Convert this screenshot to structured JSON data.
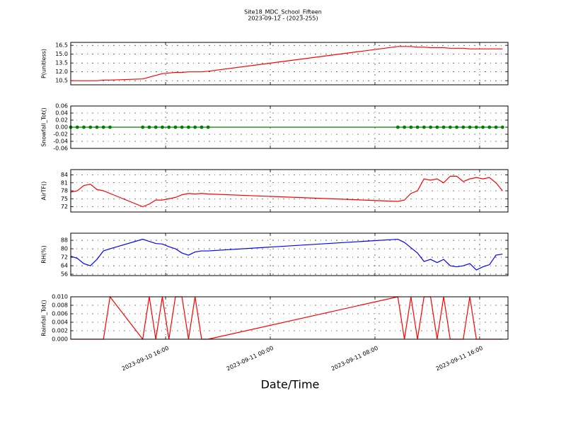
{
  "title": "Site18_MDC_School_Fifteen",
  "subtitle": "2023-09-12 - (2023-255)",
  "xlabel": "Date/Time",
  "chart_data": [
    {
      "type": "line",
      "ylabel": "P(unitless)",
      "color": "#ff0000",
      "x": [
        "2023-09-10 08:45",
        "2023-09-10 09:15",
        "2023-09-10 09:45",
        "2023-09-10 10:15",
        "2023-09-10 10:45",
        "2023-09-10 11:15",
        "2023-09-10 11:45",
        "2023-09-10 14:15",
        "2023-09-10 14:45",
        "2023-09-10 15:15",
        "2023-09-10 15:45",
        "2023-09-10 16:15",
        "2023-09-10 16:45",
        "2023-09-10 17:15",
        "2023-09-10 17:45",
        "2023-09-10 18:15",
        "2023-09-10 18:45",
        "2023-09-10 19:15",
        "2023-09-11 09:45",
        "2023-09-11 10:15",
        "2023-09-11 10:45",
        "2023-09-11 11:15",
        "2023-09-11 11:45",
        "2023-09-11 12:15",
        "2023-09-11 12:45",
        "2023-09-11 13:15",
        "2023-09-11 13:45",
        "2023-09-11 14:15",
        "2023-09-11 14:45",
        "2023-09-11 15:15",
        "2023-09-11 15:45",
        "2023-09-11 16:15",
        "2023-09-11 16:45",
        "2023-09-11 17:15",
        "2023-09-11 17:45"
      ],
      "values": [
        10.5,
        10.5,
        10.5,
        10.5,
        10.5,
        10.6,
        10.6,
        10.8,
        11.1,
        11.4,
        11.7,
        11.8,
        11.9,
        11.9,
        12.0,
        12.0,
        12.0,
        12.1,
        16.3,
        16.3,
        16.3,
        16.2,
        16.2,
        16.1,
        16.1,
        16.1,
        16.0,
        16.0,
        16.0,
        15.9,
        15.9,
        15.9,
        15.9,
        15.9,
        15.9
      ],
      "xlim": [
        "2023-09-10 08:45",
        "2023-09-11 18:10"
      ],
      "xticks": [
        "2023-09-10 16:00",
        "2023-09-11 00:00",
        "2023-09-11 08:00",
        "2023-09-11 16:00"
      ],
      "ylim": [
        9.8,
        17.0
      ],
      "yticks": [
        10.5,
        {
          "value": 12,
          "label": "12.0"
        },
        13.5,
        {
          "value": 15,
          "label": "15.0"
        },
        16.5
      ],
      "grid": true
    },
    {
      "type": "line",
      "ylabel": "Snowfall_Tot()",
      "color": "#008000",
      "markers": true,
      "x": [
        "2023-09-10 08:45",
        "2023-09-10 09:15",
        "2023-09-10 09:45",
        "2023-09-10 10:15",
        "2023-09-10 10:45",
        "2023-09-10 11:15",
        "2023-09-10 11:45",
        "2023-09-10 14:15",
        "2023-09-10 14:45",
        "2023-09-10 15:15",
        "2023-09-10 15:45",
        "2023-09-10 16:15",
        "2023-09-10 16:45",
        "2023-09-10 17:15",
        "2023-09-10 17:45",
        "2023-09-10 18:15",
        "2023-09-10 18:45",
        "2023-09-10 19:15",
        "2023-09-11 09:45",
        "2023-09-11 10:15",
        "2023-09-11 10:45",
        "2023-09-11 11:15",
        "2023-09-11 11:45",
        "2023-09-11 12:15",
        "2023-09-11 12:45",
        "2023-09-11 13:15",
        "2023-09-11 13:45",
        "2023-09-11 14:15",
        "2023-09-11 14:45",
        "2023-09-11 15:15",
        "2023-09-11 15:45",
        "2023-09-11 16:15",
        "2023-09-11 16:45",
        "2023-09-11 17:15",
        "2023-09-11 17:45"
      ],
      "values": [
        0,
        0,
        0,
        0,
        0,
        0,
        0,
        0,
        0,
        0,
        0,
        0,
        0,
        0,
        0,
        0,
        0,
        0,
        0,
        0,
        0,
        0,
        0,
        0,
        0,
        0,
        0,
        0,
        0,
        0,
        0,
        0,
        0,
        0,
        0
      ],
      "xlim": [
        "2023-09-10 08:45",
        "2023-09-11 18:10"
      ],
      "xticks": [
        "2023-09-10 16:00",
        "2023-09-11 00:00",
        "2023-09-11 08:00",
        "2023-09-11 16:00"
      ],
      "ylim": [
        -0.06,
        0.06
      ],
      "yticks": [
        -0.06,
        -0.04,
        -0.02,
        {
          "value": 0,
          "label": "0.00"
        },
        0.02,
        0.04,
        0.06
      ],
      "grid": true
    },
    {
      "type": "line",
      "ylabel": "AirTF()",
      "color": "#ff0000",
      "x": [
        "2023-09-10 08:45",
        "2023-09-10 09:15",
        "2023-09-10 09:45",
        "2023-09-10 10:15",
        "2023-09-10 10:45",
        "2023-09-10 11:15",
        "2023-09-10 11:45",
        "2023-09-10 14:15",
        "2023-09-10 14:45",
        "2023-09-10 15:15",
        "2023-09-10 15:45",
        "2023-09-10 16:15",
        "2023-09-10 16:45",
        "2023-09-10 17:15",
        "2023-09-10 17:45",
        "2023-09-10 18:15",
        "2023-09-10 18:45",
        "2023-09-10 19:15",
        "2023-09-11 09:45",
        "2023-09-11 10:15",
        "2023-09-11 10:45",
        "2023-09-11 11:15",
        "2023-09-11 11:45",
        "2023-09-11 12:15",
        "2023-09-11 12:45",
        "2023-09-11 13:15",
        "2023-09-11 13:45",
        "2023-09-11 14:15",
        "2023-09-11 14:45",
        "2023-09-11 15:15",
        "2023-09-11 15:45",
        "2023-09-11 16:15",
        "2023-09-11 16:45",
        "2023-09-11 17:15",
        "2023-09-11 17:45"
      ],
      "values": [
        77.5,
        78,
        80,
        80.5,
        78.5,
        78,
        77,
        72,
        73,
        74.5,
        74.5,
        75,
        75.5,
        76.5,
        77,
        76.8,
        77,
        76.8,
        74,
        74.5,
        77,
        78,
        82.5,
        82,
        82.5,
        81,
        83.5,
        83.5,
        81.5,
        82.5,
        83,
        82.5,
        83,
        81,
        78
      ],
      "xlim": [
        "2023-09-10 08:45",
        "2023-09-11 18:10"
      ],
      "xticks": [
        "2023-09-10 16:00",
        "2023-09-11 00:00",
        "2023-09-11 08:00",
        "2023-09-11 16:00"
      ],
      "ylim": [
        70,
        86
      ],
      "yticks": [
        72,
        75,
        78,
        81,
        84
      ],
      "grid": true
    },
    {
      "type": "line",
      "ylabel": "RH(%)",
      "color": "#0000ff",
      "x": [
        "2023-09-10 08:45",
        "2023-09-10 09:15",
        "2023-09-10 09:45",
        "2023-09-10 10:15",
        "2023-09-10 10:45",
        "2023-09-10 11:15",
        "2023-09-10 11:45",
        "2023-09-10 14:15",
        "2023-09-10 14:45",
        "2023-09-10 15:15",
        "2023-09-10 15:45",
        "2023-09-10 16:15",
        "2023-09-10 16:45",
        "2023-09-10 17:15",
        "2023-09-10 17:45",
        "2023-09-10 18:15",
        "2023-09-10 18:45",
        "2023-09-10 19:15",
        "2023-09-11 09:45",
        "2023-09-11 10:15",
        "2023-09-11 10:45",
        "2023-09-11 11:15",
        "2023-09-11 11:45",
        "2023-09-11 12:15",
        "2023-09-11 12:45",
        "2023-09-11 13:15",
        "2023-09-11 13:45",
        "2023-09-11 14:15",
        "2023-09-11 14:45",
        "2023-09-11 15:15",
        "2023-09-11 15:45",
        "2023-09-11 16:15",
        "2023-09-11 16:45",
        "2023-09-11 17:15",
        "2023-09-11 17:45"
      ],
      "values": [
        73,
        71,
        66,
        64,
        70,
        78,
        80,
        89,
        87,
        85,
        84.5,
        82,
        80,
        76,
        74,
        77,
        78,
        78,
        89,
        86,
        81,
        76,
        68,
        70,
        67,
        70,
        64,
        63,
        64,
        66,
        60,
        63,
        65,
        74,
        75
      ],
      "xlim": [
        "2023-09-10 08:45",
        "2023-09-11 18:10"
      ],
      "xticks": [
        "2023-09-10 16:00",
        "2023-09-11 00:00",
        "2023-09-11 08:00",
        "2023-09-11 16:00"
      ],
      "ylim": [
        54.7,
        94.7
      ],
      "yticks": [
        56,
        64,
        72,
        80,
        88
      ],
      "grid": true
    },
    {
      "type": "line",
      "ylabel": "Rainfall_Tot()",
      "color": "#ff0000",
      "x": [
        "2023-09-10 08:45",
        "2023-09-10 09:15",
        "2023-09-10 09:45",
        "2023-09-10 10:15",
        "2023-09-10 10:45",
        "2023-09-10 11:15",
        "2023-09-10 11:45",
        "2023-09-10 14:15",
        "2023-09-10 14:45",
        "2023-09-10 15:15",
        "2023-09-10 15:45",
        "2023-09-10 16:15",
        "2023-09-10 16:45",
        "2023-09-10 17:15",
        "2023-09-10 17:45",
        "2023-09-10 18:15",
        "2023-09-10 18:45",
        "2023-09-10 19:15",
        "2023-09-11 09:45",
        "2023-09-11 10:15",
        "2023-09-11 10:45",
        "2023-09-11 11:15",
        "2023-09-11 11:45",
        "2023-09-11 12:15",
        "2023-09-11 12:45",
        "2023-09-11 13:15",
        "2023-09-11 13:45",
        "2023-09-11 14:15",
        "2023-09-11 14:45",
        "2023-09-11 15:15",
        "2023-09-11 15:45",
        "2023-09-11 16:15",
        "2023-09-11 16:45",
        "2023-09-11 17:15",
        "2023-09-11 17:45"
      ],
      "values": [
        0,
        0,
        0,
        0,
        0,
        0,
        0.01,
        0,
        0.01,
        0,
        0.01,
        0,
        0.01,
        0.01,
        0,
        0.01,
        0,
        0,
        0.01,
        0,
        0.01,
        0,
        0.01,
        0.01,
        0,
        0.01,
        0,
        0,
        0,
        0.01,
        0,
        0,
        0,
        0,
        0
      ],
      "xlim": [
        "2023-09-10 08:45",
        "2023-09-11 18:10"
      ],
      "xticks": [
        "2023-09-10 16:00",
        "2023-09-11 00:00",
        "2023-09-11 08:00",
        "2023-09-11 16:00"
      ],
      "ylim": [
        0,
        0.01
      ],
      "yticks": [
        {
          "value": 0,
          "label": "0.000"
        },
        {
          "value": 0.002,
          "label": "0.002"
        },
        {
          "value": 0.004,
          "label": "0.004"
        },
        {
          "value": 0.006,
          "label": "0.006"
        },
        {
          "value": 0.008,
          "label": "0.008"
        },
        {
          "value": 0.01,
          "label": "0.010"
        }
      ],
      "grid": true
    }
  ]
}
